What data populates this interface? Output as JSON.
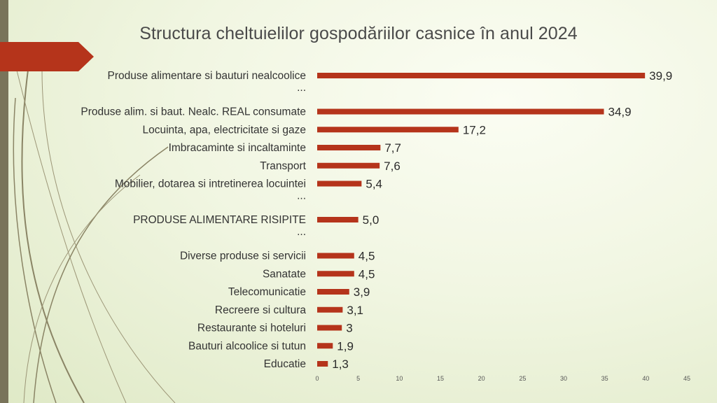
{
  "slide": {
    "title": "Structura cheltuielilor gospodăriilor casnice în anul 2024"
  },
  "colors": {
    "bar": "#b5341b",
    "highlight_label": "#d42020",
    "accent_arrow": "#b5341b",
    "band": "#79745a",
    "decor_lines": "#8a8465"
  },
  "chart_data": {
    "type": "bar",
    "orientation": "horizontal",
    "categories": [
      "Produse alimentare si bauturi nealcoolice",
      "...",
      "Produse alim. si baut. Nealc. REAL consumate",
      "Locuinta, apa, electricitate si gaze",
      "Imbracaminte si incaltaminte",
      "Transport",
      "Mobilier, dotarea si intretinerea locuintei",
      "...",
      "PRODUSE ALIMENTARE RISIPITE",
      "...",
      "Diverse produse si servicii",
      "Sanatate",
      "Telecomunicatie",
      "Recreere si cultura",
      "Restaurante si hoteluri",
      "Bauturi alcoolice si tutun",
      "Educatie"
    ],
    "values": [
      39.9,
      null,
      34.9,
      17.2,
      7.7,
      7.6,
      5.4,
      null,
      5.0,
      null,
      4.5,
      4.5,
      3.9,
      3.1,
      3,
      1.9,
      1.3
    ],
    "value_labels": [
      "39,9",
      "",
      "34,9",
      "17,2",
      "7,7",
      "7,6",
      "5,4",
      "",
      "5,0",
      "",
      "4,5",
      "4,5",
      "3,9",
      "3,1",
      "3",
      "1,9",
      "1,3"
    ],
    "highlight_index": 8,
    "xlim": [
      0,
      45
    ],
    "xticks": [
      "0",
      "5",
      "10",
      "15",
      "20",
      "25",
      "30",
      "35",
      "40",
      "45"
    ],
    "grid": false,
    "legend": "none"
  }
}
